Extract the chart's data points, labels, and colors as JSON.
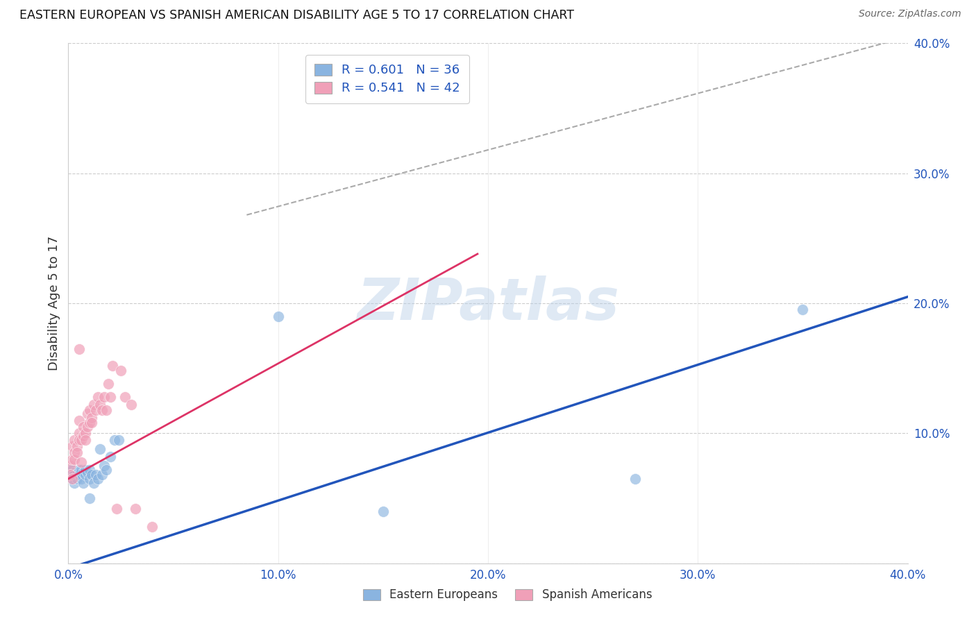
{
  "title": "EASTERN EUROPEAN VS SPANISH AMERICAN DISABILITY AGE 5 TO 17 CORRELATION CHART",
  "source": "Source: ZipAtlas.com",
  "ylabel": "Disability Age 5 to 17",
  "xlim": [
    0.0,
    0.4
  ],
  "ylim": [
    0.0,
    0.4
  ],
  "xticks": [
    0.0,
    0.1,
    0.2,
    0.3,
    0.4
  ],
  "yticks": [
    0.0,
    0.1,
    0.2,
    0.3,
    0.4
  ],
  "xtick_labels": [
    "0.0%",
    "10.0%",
    "20.0%",
    "30.0%",
    "40.0%"
  ],
  "ytick_labels_right": [
    "",
    "10.0%",
    "20.0%",
    "30.0%",
    "40.0%"
  ],
  "grid_color": "#cccccc",
  "background_color": "#ffffff",
  "blue_color": "#8ab4e0",
  "pink_color": "#f0a0b8",
  "blue_line_color": "#2255bb",
  "pink_line_color": "#dd3366",
  "dashed_line_color": "#aaaaaa",
  "tick_label_color": "#2255bb",
  "legend_R1": "R = 0.601",
  "legend_N1": "N = 36",
  "legend_R2": "R = 0.541",
  "legend_N2": "N = 42",
  "watermark": "ZIPatlas",
  "blue_scatter_x": [
    0.001,
    0.001,
    0.002,
    0.002,
    0.003,
    0.003,
    0.003,
    0.004,
    0.004,
    0.005,
    0.005,
    0.006,
    0.006,
    0.007,
    0.007,
    0.008,
    0.008,
    0.009,
    0.01,
    0.01,
    0.011,
    0.012,
    0.013,
    0.014,
    0.015,
    0.016,
    0.017,
    0.018,
    0.02,
    0.022,
    0.024,
    0.1,
    0.15,
    0.27,
    0.35,
    0.01
  ],
  "blue_scatter_y": [
    0.072,
    0.068,
    0.072,
    0.065,
    0.07,
    0.068,
    0.062,
    0.068,
    0.065,
    0.072,
    0.068,
    0.072,
    0.065,
    0.07,
    0.062,
    0.068,
    0.072,
    0.07,
    0.072,
    0.065,
    0.068,
    0.062,
    0.068,
    0.065,
    0.088,
    0.068,
    0.075,
    0.072,
    0.082,
    0.095,
    0.095,
    0.19,
    0.04,
    0.065,
    0.195,
    0.05
  ],
  "pink_scatter_x": [
    0.001,
    0.001,
    0.002,
    0.002,
    0.002,
    0.003,
    0.003,
    0.003,
    0.004,
    0.004,
    0.005,
    0.005,
    0.005,
    0.006,
    0.006,
    0.007,
    0.007,
    0.008,
    0.008,
    0.009,
    0.009,
    0.01,
    0.01,
    0.011,
    0.011,
    0.012,
    0.013,
    0.014,
    0.015,
    0.016,
    0.017,
    0.018,
    0.019,
    0.02,
    0.021,
    0.023,
    0.025,
    0.027,
    0.03,
    0.032,
    0.04,
    0.005
  ],
  "pink_scatter_y": [
    0.075,
    0.068,
    0.08,
    0.09,
    0.065,
    0.085,
    0.08,
    0.095,
    0.09,
    0.085,
    0.1,
    0.095,
    0.11,
    0.078,
    0.095,
    0.098,
    0.105,
    0.1,
    0.095,
    0.105,
    0.115,
    0.108,
    0.118,
    0.112,
    0.108,
    0.122,
    0.118,
    0.128,
    0.122,
    0.118,
    0.128,
    0.118,
    0.138,
    0.128,
    0.152,
    0.042,
    0.148,
    0.128,
    0.122,
    0.042,
    0.028,
    0.165
  ],
  "blue_line_x0": 0.0,
  "blue_line_x1": 0.4,
  "blue_line_y0": -0.004,
  "blue_line_y1": 0.205,
  "pink_line_x0": 0.0,
  "pink_line_x1": 0.195,
  "pink_line_y0": 0.065,
  "pink_line_y1": 0.238,
  "dashed_line_x0": 0.085,
  "dashed_line_x1": 0.4,
  "dashed_line_y0": 0.268,
  "dashed_line_y1": 0.405
}
